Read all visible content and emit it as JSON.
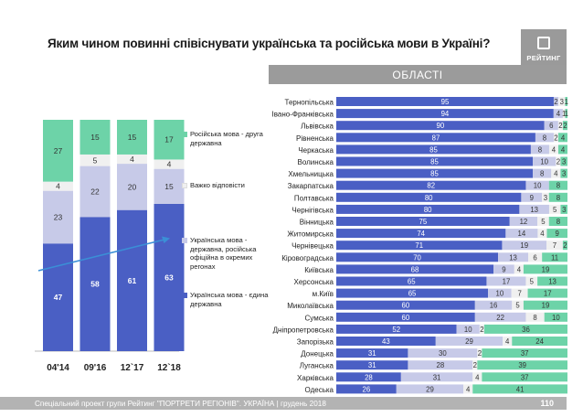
{
  "title": "Яким чином повинні співіснувати українська та російська мови в Україні?",
  "logo_text": "РЕЙТИНГ",
  "banner": "ОБЛАСТІ",
  "footer": "Спеціальний проект групи Рейтинг \"ПОРТРЕТИ РЕГІОНІВ\". УКРАЇНА | грудень 2018",
  "page_number": "110",
  "colors": {
    "ukr_only": "#4a5fc4",
    "ukr_state_rus_official": "#c7cae8",
    "hard_to_say": "#f0f0f0",
    "rus_second": "#6dd3a8",
    "trend_arrow": "#3b8fd6"
  },
  "legend": [
    {
      "label": "Російська мова - друга державна",
      "color_key": "rus_second"
    },
    {
      "label": "Важко відповісти",
      "color_key": "hard_to_say"
    },
    {
      "label": "Українська мова - державна, російська офіційна в окремих регонах",
      "color_key": "ukr_state_rus_official"
    },
    {
      "label": "Українська мова - єдина державна",
      "color_key": "ukr_only"
    }
  ],
  "chart_data": [
    {
      "type": "bar",
      "stacked": true,
      "categories": [
        "04'14",
        "09'16",
        "12`17",
        "12`18"
      ],
      "series": [
        {
          "name": "Українська мова - єдина державна",
          "values": [
            47,
            58,
            61,
            63
          ]
        },
        {
          "name": "Українська мова - державна, російська офіційна в окремих регонах",
          "values": [
            23,
            22,
            20,
            15
          ]
        },
        {
          "name": "Важко відповісти",
          "values": [
            4,
            5,
            4,
            4
          ]
        },
        {
          "name": "Російська мова - друга державна",
          "values": [
            27,
            15,
            15,
            17
          ]
        }
      ],
      "ylim": [
        0,
        100
      ]
    },
    {
      "type": "bar",
      "orientation": "horizontal",
      "stacked": true,
      "categories": [
        "Тернопільська",
        "Івано-Франківська",
        "Львівська",
        "Рівненська",
        "Черкаська",
        "Волинська",
        "Хмельницька",
        "Закарпатська",
        "Полтавська",
        "Чернігівська",
        "Вінницька",
        "Житомирська",
        "Чернівецька",
        "Кіровоградська",
        "Київська",
        "Херсонська",
        "м.Київ",
        "Миколаївська",
        "Сумська",
        "Дніпропетровська",
        "Запорізька",
        "Донецька",
        "Луганська",
        "Харківська",
        "Одеська"
      ],
      "series": [
        {
          "name": "Українська мова - єдина державна",
          "values": [
            95,
            94,
            90,
            87,
            85,
            85,
            85,
            82,
            80,
            80,
            75,
            74,
            71,
            70,
            68,
            65,
            65,
            60,
            60,
            52,
            43,
            31,
            31,
            28,
            26
          ]
        },
        {
          "name": "Українська мова - державна, російська офіційна в окремих регонах",
          "values": [
            2,
            4,
            6,
            8,
            8,
            10,
            8,
            10,
            9,
            13,
            12,
            14,
            19,
            13,
            9,
            17,
            10,
            16,
            22,
            10,
            29,
            30,
            28,
            31,
            29
          ]
        },
        {
          "name": "Важко відповісти",
          "values": [
            3,
            1,
            2,
            2,
            4,
            2,
            4,
            0,
            3,
            5,
            5,
            4,
            7,
            6,
            4,
            5,
            7,
            5,
            8,
            2,
            4,
            2,
            2,
            4,
            4
          ]
        },
        {
          "name": "Російська мова - друга державна",
          "values": [
            1,
            1,
            2,
            4,
            4,
            3,
            3,
            8,
            8,
            3,
            8,
            9,
            2,
            11,
            19,
            13,
            17,
            19,
            10,
            36,
            24,
            37,
            39,
            37,
            41
          ]
        }
      ],
      "xlim": [
        0,
        100
      ]
    }
  ]
}
